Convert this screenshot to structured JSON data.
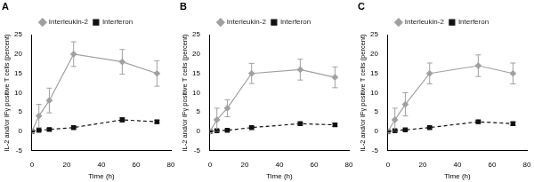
{
  "chart_data": [
    {
      "type": "line",
      "title": "A",
      "x_label": "Time (h)",
      "y_label": "IL-2 and/or IFγ positive T cells (percent)",
      "x": [
        0,
        4,
        10,
        24,
        52,
        72
      ],
      "series": [
        {
          "name": "Interleukin-2",
          "color": "#a0a0a0",
          "marker": "diamond",
          "line_style": "solid",
          "values": [
            0,
            4,
            8,
            20,
            18,
            15
          ],
          "errors": [
            0.3,
            3,
            3.2,
            3.2,
            3.2,
            3.3
          ]
        },
        {
          "name": "Interferon",
          "color": "#111111",
          "marker": "square",
          "line_style": "dashed",
          "values": [
            0,
            0.3,
            0.5,
            1,
            3,
            2.5
          ],
          "errors": [
            0.1,
            0.2,
            0.3,
            0.3,
            0.5,
            0.4
          ]
        }
      ],
      "xlim": [
        0,
        80
      ],
      "xticks": [
        0,
        20,
        40,
        60,
        80
      ],
      "ylim": [
        -5,
        25
      ],
      "yticks": [
        -5,
        0,
        5,
        10,
        15,
        20,
        25
      ],
      "grid": false,
      "legend": "top"
    },
    {
      "type": "line",
      "title": "B",
      "x_label": "Time (h)",
      "y_label": "IL-2 and/or IFγ positive T cells (percent)",
      "x": [
        0,
        4,
        10,
        24,
        52,
        72
      ],
      "series": [
        {
          "name": "Interleukin-2",
          "color": "#a0a0a0",
          "marker": "diamond",
          "line_style": "solid",
          "values": [
            0,
            3,
            6,
            15,
            16,
            14
          ],
          "errors": [
            0.3,
            3,
            2.2,
            2.6,
            2.7,
            2.7
          ]
        },
        {
          "name": "Interferon",
          "color": "#111111",
          "marker": "square",
          "line_style": "dashed",
          "values": [
            0,
            0.2,
            0.3,
            1,
            2,
            1.7
          ],
          "errors": [
            0.1,
            0.2,
            0.2,
            0.3,
            0.4,
            0.4
          ]
        }
      ],
      "xlim": [
        0,
        80
      ],
      "xticks": [
        0,
        20,
        40,
        60,
        80
      ],
      "ylim": [
        -5,
        25
      ],
      "yticks": [
        -5,
        0,
        5,
        10,
        15,
        20,
        25
      ],
      "grid": false,
      "legend": "top"
    },
    {
      "type": "line",
      "title": "C",
      "x_label": "Time (h)",
      "y_label": "IL-2 and/or IFγ positive T cells (percent)",
      "x": [
        0,
        4,
        10,
        24,
        52,
        72
      ],
      "series": [
        {
          "name": "Interleukin-2",
          "color": "#a0a0a0",
          "marker": "diamond",
          "line_style": "solid",
          "values": [
            0,
            3,
            7,
            15,
            17,
            15
          ],
          "errors": [
            0.3,
            3,
            3,
            2.7,
            2.8,
            2.7
          ]
        },
        {
          "name": "Interferon",
          "color": "#111111",
          "marker": "square",
          "line_style": "dashed",
          "values": [
            0,
            0.2,
            0.4,
            1,
            2.5,
            2
          ],
          "errors": [
            0.1,
            0.2,
            0.2,
            0.3,
            0.4,
            0.4
          ]
        }
      ],
      "xlim": [
        0,
        80
      ],
      "xticks": [
        0,
        20,
        40,
        60,
        80
      ],
      "ylim": [
        -5,
        25
      ],
      "yticks": [
        -5,
        0,
        5,
        10,
        15,
        20,
        25
      ],
      "grid": false,
      "legend": "top"
    }
  ]
}
